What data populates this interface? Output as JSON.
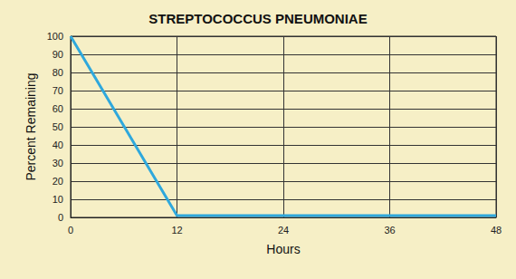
{
  "chart_data": {
    "type": "line",
    "title": "STREPTOCOCCUS PNEUMONIAE",
    "x_label": "Hours",
    "y_label": "Percent Remaining",
    "x": [
      0,
      12,
      24,
      36,
      48
    ],
    "values": [
      100,
      1,
      1,
      1,
      1
    ],
    "color": "#2fa8dc",
    "xlim": [
      0,
      48
    ],
    "xticks": [
      0,
      12,
      24,
      36,
      48
    ],
    "ylim": [
      0,
      100
    ],
    "yticks": [
      0,
      10,
      20,
      30,
      40,
      50,
      60,
      70,
      80,
      90,
      100
    ],
    "grid": true
  }
}
